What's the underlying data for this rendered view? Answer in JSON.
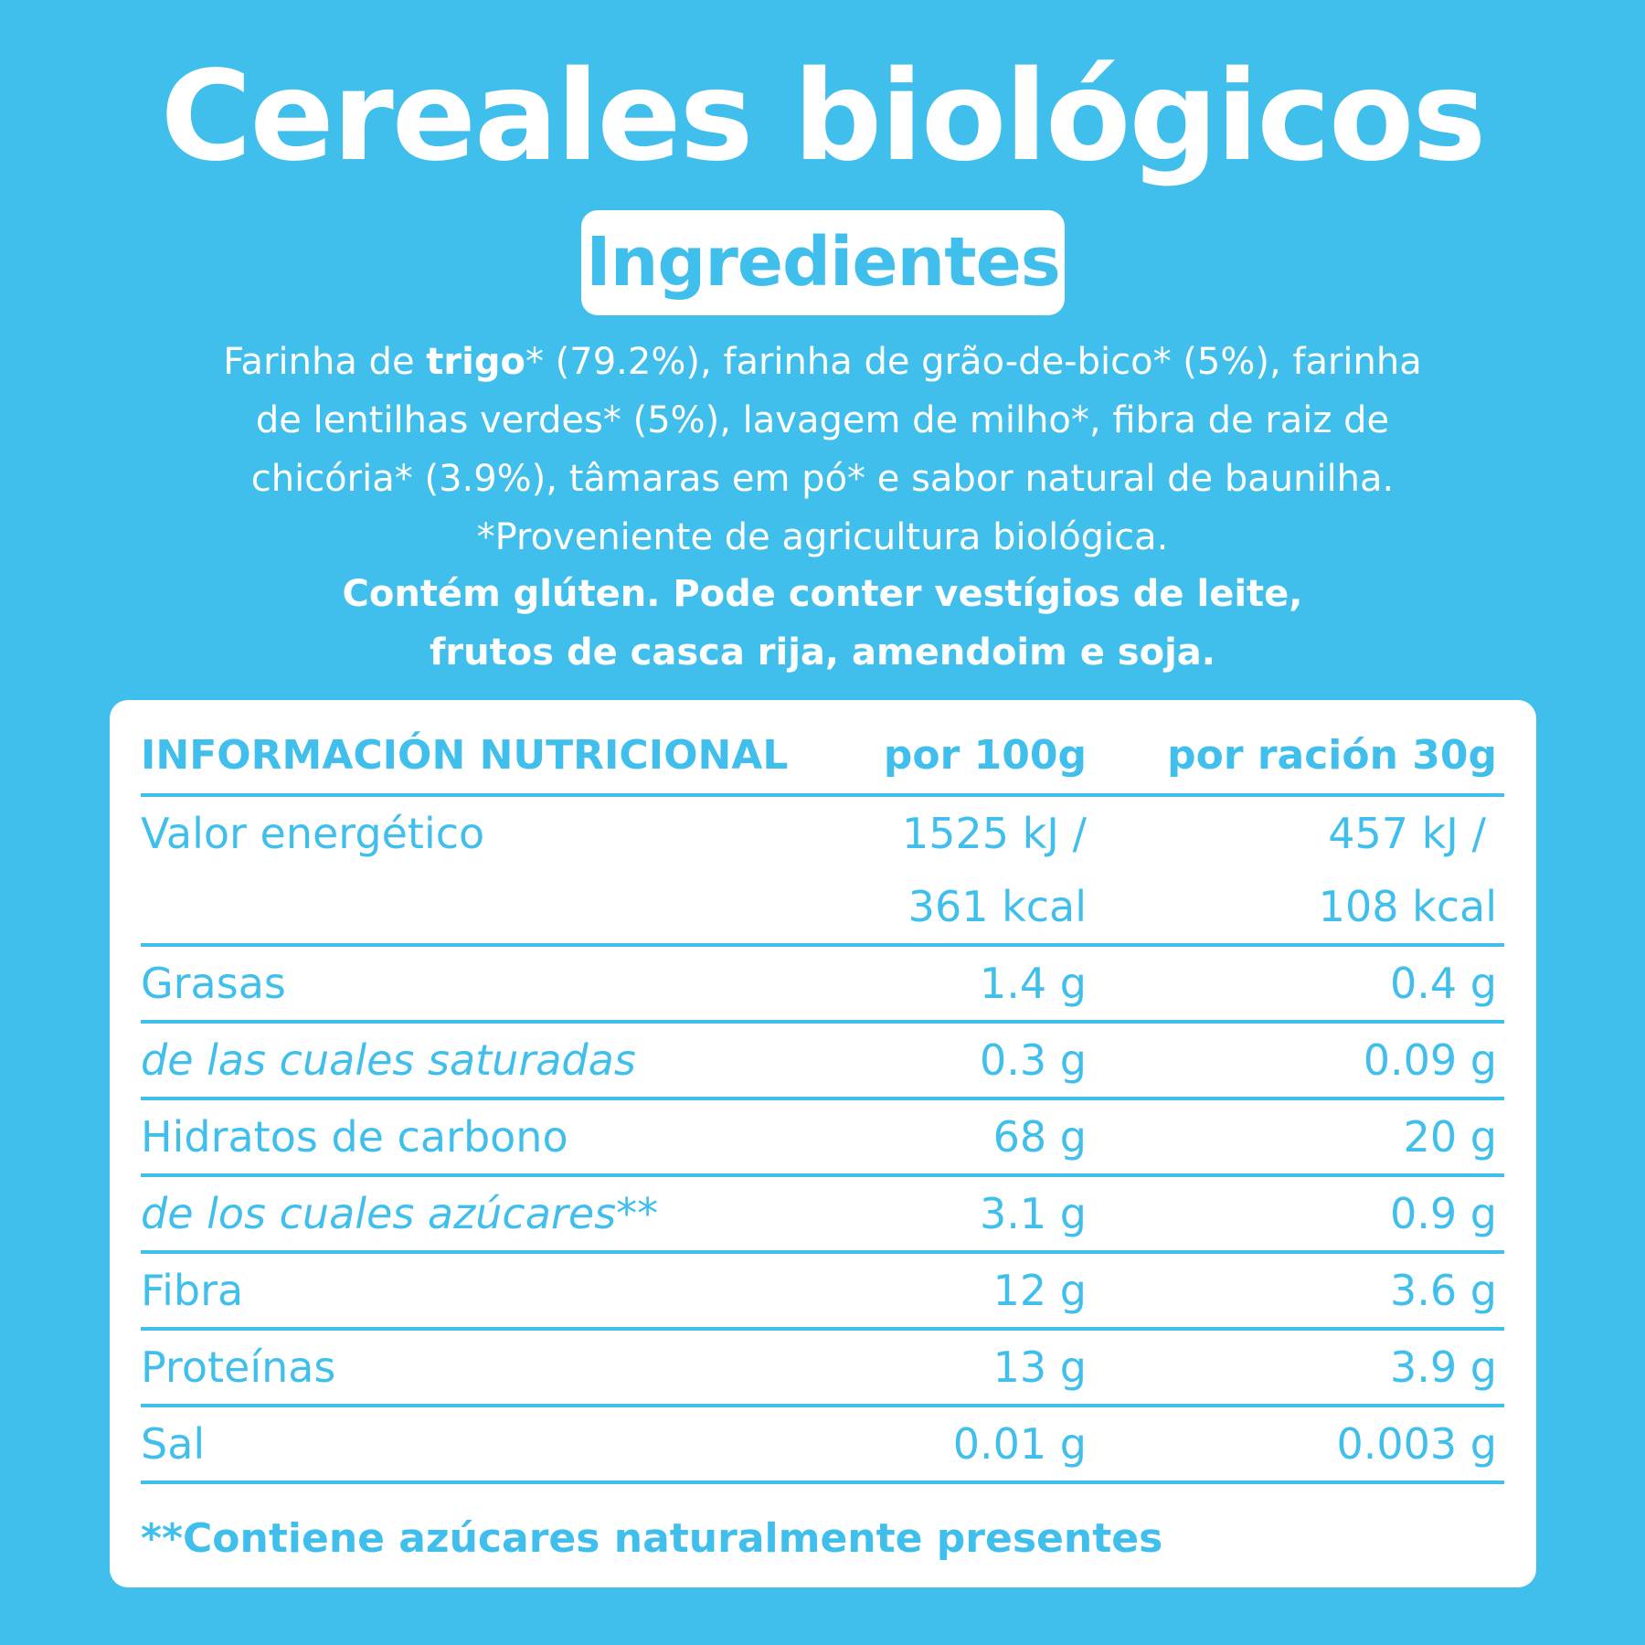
{
  "title": "Cereales biológicos",
  "badge": "Ingredientes",
  "ingredients": {
    "line1_pre": "Farinha de ",
    "line1_bold": "trigo",
    "line1_post": "* (79.2%), farinha de grão-de-bico* (5%), farinha",
    "line2": "de lentilhas verdes* (5%), lavagem de milho*, fibra de raiz de",
    "line3": "chicória* (3.9%), tâmaras em pó* e sabor natural de baunilha.",
    "line4": "*Proveniente de agricultura biológica."
  },
  "allergens": {
    "line1": "Contém glúten. Pode conter vestígios de leite,",
    "line2": "frutos de casca rija, amendoim e soja."
  },
  "nutrition": {
    "header": {
      "label": "INFORMACIÓN NUTRICIONAL",
      "col1": "por 100g",
      "col2": "por ración 30g"
    },
    "energy": {
      "label": "Valor energético",
      "col1_kj": "1525 kJ /",
      "col1_kcal": "361 kcal",
      "col2_kj": "457 kJ /",
      "col2_kcal": "108 kcal"
    },
    "rows": [
      {
        "label": "Grasas",
        "col1": "1.4 g",
        "col2": "0.4 g"
      },
      {
        "label": "de las cuales saturadas",
        "col1": "0.3 g",
        "col2": "0.09 g"
      },
      {
        "label": "Hidratos de carbono",
        "col1": "68 g",
        "col2": "20 g"
      },
      {
        "label": "de los cuales azúcares**",
        "col1": "3.1 g",
        "col2": "0.9 g"
      },
      {
        "label": "Fibra",
        "col1": "12 g",
        "col2": "3.6 g"
      },
      {
        "label": "Proteínas",
        "col1": "13 g",
        "col2": "3.9 g"
      },
      {
        "label": "Sal",
        "col1": "0.01 g",
        "col2": "0.003 g"
      }
    ],
    "footnote": "**Contiene azúcares naturalmente presentes"
  },
  "colors": {
    "background": "#41bfec",
    "panel": "#ffffff",
    "text_on_panel": "#41bfec"
  }
}
